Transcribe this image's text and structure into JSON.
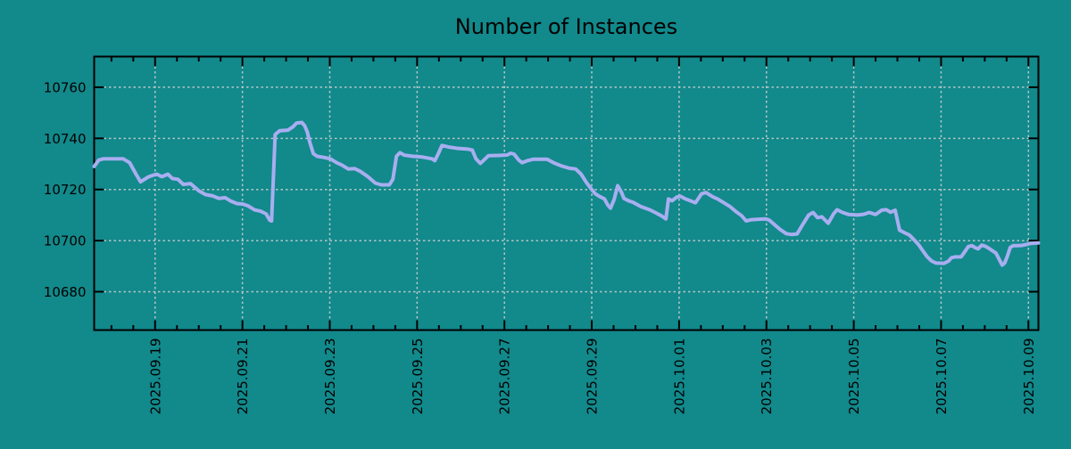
{
  "colors": {
    "background": "#12898b",
    "line": "#a8aef0",
    "grid": "#b4c7c7",
    "axis": "#000000",
    "text": "#000000"
  },
  "chart_data": {
    "type": "line",
    "title": "Number of Instances",
    "legend": false,
    "grid": "dashed",
    "x_axis": {
      "range": [
        "2025-09-17 14:30",
        "2025-10-09 05:30"
      ],
      "major_ticks": [
        "2025-09-19",
        "2025-09-21",
        "2025-09-23",
        "2025-09-25",
        "2025-09-27",
        "2025-09-29",
        "2025-10-01",
        "2025-10-03",
        "2025-10-05",
        "2025-10-07",
        "2025-10-09"
      ],
      "major_tick_labels": [
        "2025.09.19",
        "2025.09.21",
        "2025.09.23",
        "2025.09.25",
        "2025.09.27",
        "2025.09.29",
        "2025.10.01",
        "2025.10.03",
        "2025.10.05",
        "2025.10.07",
        "2025.10.09"
      ],
      "minor_tick_interval_hours": 12,
      "label_rotation_deg": -90
    },
    "y_axis": {
      "range": [
        10665,
        10772
      ],
      "ticks": [
        10680,
        10700,
        10720,
        10740,
        10760
      ],
      "tick_labels": [
        "10680",
        "10700",
        "10720",
        "10740",
        "10760"
      ]
    },
    "series": [
      {
        "name": "Number of Instances",
        "color": "#a8aef0",
        "points": [
          [
            "2025-09-17 14:30",
            10729.0
          ],
          [
            "2025-09-17 17:00",
            10731.5
          ],
          [
            "2025-09-17 19:30",
            10732.0
          ],
          [
            "2025-09-18 06:30",
            10732.0
          ],
          [
            "2025-09-18 10:00",
            10730.5
          ],
          [
            "2025-09-18 13:30",
            10726.0
          ],
          [
            "2025-09-18 16:00",
            10723.0
          ],
          [
            "2025-09-18 20:00",
            10724.8
          ],
          [
            "2025-09-18 22:30",
            10725.5
          ],
          [
            "2025-09-19 01:00",
            10726.0
          ],
          [
            "2025-09-19 03:40",
            10725.0
          ],
          [
            "2025-09-19 07:00",
            10726.0
          ],
          [
            "2025-09-19 09:30",
            10724.3
          ],
          [
            "2025-09-19 12:30",
            10724.0
          ],
          [
            "2025-09-19 15:30",
            10722.0
          ],
          [
            "2025-09-19 19:30",
            10722.3
          ],
          [
            "2025-09-20 00:00",
            10719.5
          ],
          [
            "2025-09-20 03:40",
            10718.0
          ],
          [
            "2025-09-20 07:40",
            10717.5
          ],
          [
            "2025-09-20 11:00",
            10716.5
          ],
          [
            "2025-09-20 14:30",
            10716.8
          ],
          [
            "2025-09-20 17:30",
            10715.5
          ],
          [
            "2025-09-20 21:00",
            10714.5
          ],
          [
            "2025-09-21 00:20",
            10714.3
          ],
          [
            "2025-09-21 03:15",
            10713.5
          ],
          [
            "2025-09-21 06:40",
            10712.0
          ],
          [
            "2025-09-21 10:00",
            10711.5
          ],
          [
            "2025-09-21 13:00",
            10710.5
          ],
          [
            "2025-09-21 15:00",
            10708.0
          ],
          [
            "2025-09-21 16:00",
            10707.7
          ],
          [
            "2025-09-21 18:00",
            10741.5
          ],
          [
            "2025-09-21 20:30",
            10743.0
          ],
          [
            "2025-09-22 01:00",
            10743.2
          ],
          [
            "2025-09-22 03:45",
            10744.5
          ],
          [
            "2025-09-22 05:45",
            10746.0
          ],
          [
            "2025-09-22 08:40",
            10746.2
          ],
          [
            "2025-09-22 10:10",
            10745.0
          ],
          [
            "2025-09-22 11:40",
            10742.5
          ],
          [
            "2025-09-22 13:00",
            10738.5
          ],
          [
            "2025-09-22 15:00",
            10734.0
          ],
          [
            "2025-09-22 17:00",
            10733.0
          ],
          [
            "2025-09-22 21:00",
            10732.5
          ],
          [
            "2025-09-23 00:20",
            10732.0
          ],
          [
            "2025-09-23 03:45",
            10730.5
          ],
          [
            "2025-09-23 06:45",
            10729.5
          ],
          [
            "2025-09-23 10:10",
            10728.0
          ],
          [
            "2025-09-23 13:35",
            10728.2
          ],
          [
            "2025-09-23 17:00",
            10727.0
          ],
          [
            "2025-09-23 21:00",
            10725.0
          ],
          [
            "2025-09-24 01:00",
            10722.5
          ],
          [
            "2025-09-24 04:20",
            10721.8
          ],
          [
            "2025-09-24 08:45",
            10721.8
          ],
          [
            "2025-09-24 10:40",
            10724.0
          ],
          [
            "2025-09-24 12:40",
            10733.0
          ],
          [
            "2025-09-24 14:35",
            10734.4
          ],
          [
            "2025-09-24 17:00",
            10733.4
          ],
          [
            "2025-09-24 21:30",
            10733.0
          ],
          [
            "2025-09-25 03:00",
            10732.7
          ],
          [
            "2025-09-25 08:15",
            10732.0
          ],
          [
            "2025-09-25 09:45",
            10731.3
          ],
          [
            "2025-09-25 11:40",
            10734.0
          ],
          [
            "2025-09-25 13:40",
            10737.2
          ],
          [
            "2025-09-25 17:30",
            10736.6
          ],
          [
            "2025-09-25 22:00",
            10736.1
          ],
          [
            "2025-09-26 04:00",
            10735.8
          ],
          [
            "2025-09-26 06:20",
            10735.4
          ],
          [
            "2025-09-26 08:20",
            10732.0
          ],
          [
            "2025-09-26 10:45",
            10730.2
          ],
          [
            "2025-09-26 13:10",
            10731.8
          ],
          [
            "2025-09-26 15:10",
            10733.2
          ],
          [
            "2025-09-26 20:30",
            10733.3
          ],
          [
            "2025-09-27 01:30",
            10733.5
          ],
          [
            "2025-09-27 03:25",
            10734.2
          ],
          [
            "2025-09-27 05:20",
            10733.8
          ],
          [
            "2025-09-27 07:50",
            10731.5
          ],
          [
            "2025-09-27 09:45",
            10730.5
          ],
          [
            "2025-09-27 12:45",
            10731.3
          ],
          [
            "2025-09-27 15:40",
            10731.8
          ],
          [
            "2025-09-27 23:30",
            10731.8
          ],
          [
            "2025-09-28 03:30",
            10730.3
          ],
          [
            "2025-09-28 07:50",
            10729.1
          ],
          [
            "2025-09-28 11:45",
            10728.3
          ],
          [
            "2025-09-28 15:10",
            10728.0
          ],
          [
            "2025-09-28 18:10",
            10726.0
          ],
          [
            "2025-09-28 21:05",
            10722.7
          ],
          [
            "2025-09-29 00:00",
            10720.0
          ],
          [
            "2025-09-29 02:00",
            10718.3
          ],
          [
            "2025-09-29 04:00",
            10717.4
          ],
          [
            "2025-09-29 07:00",
            10716.3
          ],
          [
            "2025-09-29 08:50",
            10713.9
          ],
          [
            "2025-09-29 10:20",
            10712.7
          ],
          [
            "2025-09-29 12:15",
            10716.0
          ],
          [
            "2025-09-29 14:15",
            10721.5
          ],
          [
            "2025-09-29 16:15",
            10719.0
          ],
          [
            "2025-09-29 17:40",
            10716.5
          ],
          [
            "2025-09-29 20:10",
            10715.6
          ],
          [
            "2025-09-29 22:35",
            10715.0
          ],
          [
            "2025-09-30 03:00",
            10713.3
          ],
          [
            "2025-09-30 08:00",
            10712.0
          ],
          [
            "2025-09-30 10:50",
            10711.0
          ],
          [
            "2025-09-30 14:15",
            10709.7
          ],
          [
            "2025-09-30 16:45",
            10708.5
          ],
          [
            "2025-09-30 18:10",
            10716.3
          ],
          [
            "2025-09-30 20:10",
            10715.6
          ],
          [
            "2025-09-30 22:40",
            10717.0
          ],
          [
            "2025-10-01 00:35",
            10717.4
          ],
          [
            "2025-10-01 03:30",
            10716.3
          ],
          [
            "2025-10-01 06:30",
            10715.5
          ],
          [
            "2025-10-01 09:00",
            10714.8
          ],
          [
            "2025-10-01 12:20",
            10718.3
          ],
          [
            "2025-10-01 14:45",
            10718.8
          ],
          [
            "2025-10-01 18:15",
            10717.2
          ],
          [
            "2025-10-01 21:10",
            10716.3
          ],
          [
            "2025-10-02 00:35",
            10714.8
          ],
          [
            "2025-10-02 04:00",
            10713.3
          ],
          [
            "2025-10-02 07:00",
            10711.5
          ],
          [
            "2025-10-02 10:25",
            10709.7
          ],
          [
            "2025-10-02 12:50",
            10707.7
          ],
          [
            "2025-10-02 15:45",
            10708.2
          ],
          [
            "2025-10-02 20:40",
            10708.4
          ],
          [
            "2025-10-02 23:40",
            10708.5
          ],
          [
            "2025-10-03 01:35",
            10708.0
          ],
          [
            "2025-10-03 04:30",
            10706.2
          ],
          [
            "2025-10-03 07:30",
            10704.4
          ],
          [
            "2025-10-03 10:55",
            10702.7
          ],
          [
            "2025-10-03 13:50",
            10702.4
          ],
          [
            "2025-10-03 16:50",
            10702.6
          ],
          [
            "2025-10-03 19:15",
            10705.5
          ],
          [
            "2025-10-03 23:10",
            10710.0
          ],
          [
            "2025-10-04 01:40",
            10711.0
          ],
          [
            "2025-10-04 04:05",
            10709.0
          ],
          [
            "2025-10-04 06:30",
            10709.3
          ],
          [
            "2025-10-04 10:00",
            10706.8
          ],
          [
            "2025-10-04 12:55",
            10710.5
          ],
          [
            "2025-10-04 14:50",
            10712.1
          ],
          [
            "2025-10-04 17:50",
            10711.0
          ],
          [
            "2025-10-04 21:15",
            10710.2
          ],
          [
            "2025-10-05 02:10",
            10710.0
          ],
          [
            "2025-10-05 05:35",
            10710.3
          ],
          [
            "2025-10-05 08:30",
            10711.0
          ],
          [
            "2025-10-05 12:00",
            10710.2
          ],
          [
            "2025-10-05 15:25",
            10711.9
          ],
          [
            "2025-10-05 17:50",
            10712.1
          ],
          [
            "2025-10-05 20:15",
            10711.1
          ],
          [
            "2025-10-05 22:45",
            10711.9
          ],
          [
            "2025-10-06 01:10",
            10704.1
          ],
          [
            "2025-10-06 04:10",
            10703.0
          ],
          [
            "2025-10-06 06:35",
            10702.2
          ],
          [
            "2025-10-06 09:00",
            10700.4
          ],
          [
            "2025-10-06 11:30",
            10698.5
          ],
          [
            "2025-10-06 14:00",
            10696.0
          ],
          [
            "2025-10-06 16:20",
            10693.7
          ],
          [
            "2025-10-06 18:50",
            10692.0
          ],
          [
            "2025-10-06 21:15",
            10691.2
          ],
          [
            "2025-10-07 01:40",
            10691.1
          ],
          [
            "2025-10-07 04:10",
            10692.0
          ],
          [
            "2025-10-07 05:40",
            10693.3
          ],
          [
            "2025-10-07 07:35",
            10693.6
          ],
          [
            "2025-10-07 11:00",
            10693.6
          ],
          [
            "2025-10-07 13:00",
            10695.6
          ],
          [
            "2025-10-07 15:00",
            10697.7
          ],
          [
            "2025-10-07 17:00",
            10698.0
          ],
          [
            "2025-10-07 18:50",
            10697.2
          ],
          [
            "2025-10-07 20:20",
            10696.8
          ],
          [
            "2025-10-07 22:20",
            10698.2
          ],
          [
            "2025-10-08 00:15",
            10697.8
          ],
          [
            "2025-10-08 02:15",
            10697.0
          ],
          [
            "2025-10-08 04:40",
            10695.8
          ],
          [
            "2025-10-08 06:10",
            10695.1
          ],
          [
            "2025-10-08 08:05",
            10692.5
          ],
          [
            "2025-10-08 09:35",
            10690.4
          ],
          [
            "2025-10-08 11:00",
            10691.3
          ],
          [
            "2025-10-08 12:30",
            10694.0
          ],
          [
            "2025-10-08 14:00",
            10697.3
          ],
          [
            "2025-10-08 15:30",
            10698.0
          ],
          [
            "2025-10-08 18:00",
            10698.0
          ],
          [
            "2025-10-08 20:20",
            10698.1
          ],
          [
            "2025-10-08 22:50",
            10698.5
          ],
          [
            "2025-10-09 01:15",
            10698.9
          ],
          [
            "2025-10-09 03:40",
            10699.0
          ],
          [
            "2025-10-09 05:30",
            10699.1
          ]
        ]
      }
    ]
  }
}
